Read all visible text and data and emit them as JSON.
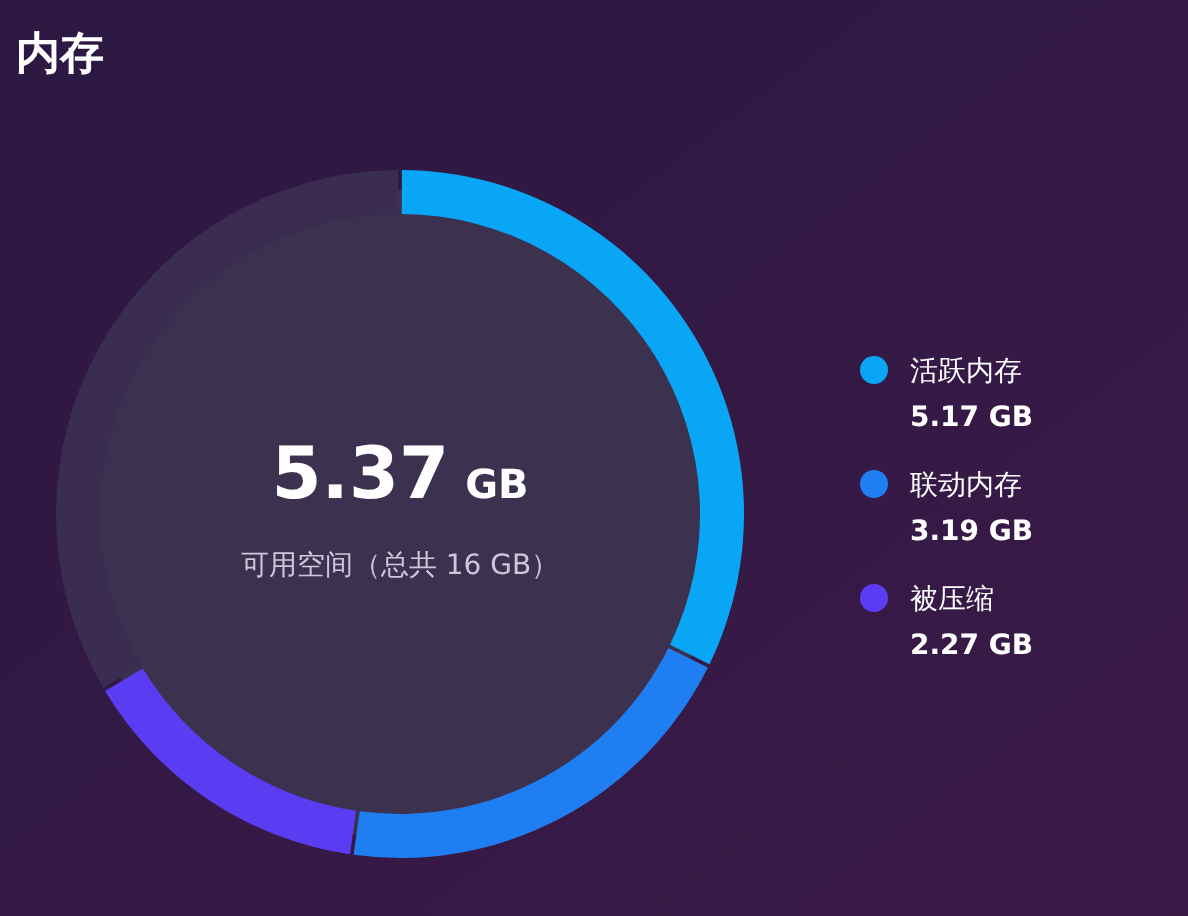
{
  "chart_data": {
    "type": "donut",
    "title": "内存",
    "categories": [
      "活跃内存",
      "联动内存",
      "被压缩",
      null
    ],
    "values": [
      5.17,
      3.19,
      2.27,
      5.37
    ],
    "colors": [
      "#0aa6f6",
      "#1f7ff2",
      "#5a3df2",
      "#3b2c52"
    ],
    "value_labels": [
      "5.17 GB",
      "3.19 GB",
      "2.27 GB",
      null
    ],
    "annotations": [
      "5.37 GB",
      "可用空间（总共 16 GB）"
    ],
    "legend": "right"
  }
}
